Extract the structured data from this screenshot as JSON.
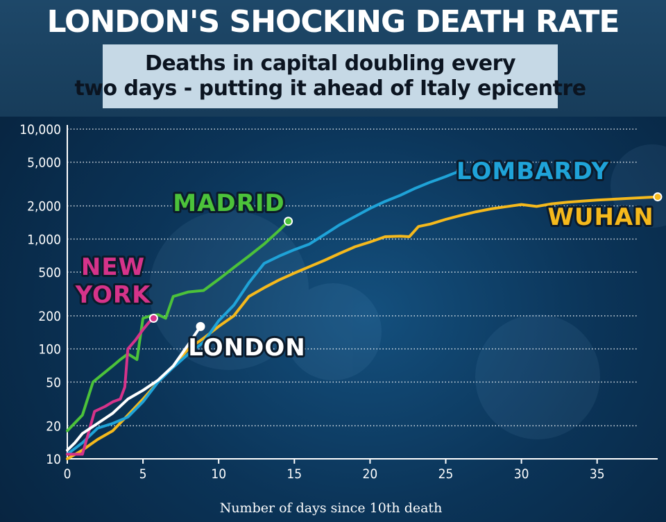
{
  "header": {
    "title": "LONDON'S SHOCKING DEATH RATE",
    "subtitle_line1": "Deaths in capital doubling every",
    "subtitle_line2": "two days - putting it ahead of Italy epicentre"
  },
  "colors": {
    "background": "#0b3458",
    "grid": "#ffffff",
    "madrid": "#4cc23a",
    "new_york": "#d6338a",
    "london": "#ffffff",
    "lombardy": "#1fa3d8",
    "wuhan": "#f5b91c",
    "label_outline": "#0b1a2a"
  },
  "chart_data": {
    "type": "line",
    "xlabel": "Number of days since 10th death",
    "ylabel": "",
    "xlim": [
      0,
      39
    ],
    "ylim": [
      10,
      10000
    ],
    "yscale": "log",
    "x_ticks": [
      0,
      5,
      10,
      15,
      20,
      25,
      30,
      35
    ],
    "y_ticks": [
      {
        "value": 10,
        "label": "10"
      },
      {
        "value": 20,
        "label": "20"
      },
      {
        "value": 50,
        "label": "50"
      },
      {
        "value": 100,
        "label": "100"
      },
      {
        "value": 200,
        "label": "200"
      },
      {
        "value": 500,
        "label": "500"
      },
      {
        "value": 1000,
        "label": "1,000"
      },
      {
        "value": 2000,
        "label": "2,000"
      },
      {
        "value": 5000,
        "label": "5,000"
      },
      {
        "value": 10000,
        "label": "10,000"
      }
    ],
    "grid": "horizontal-dotted",
    "series": [
      {
        "name": "WUHAN",
        "key": "wuhan",
        "label_lines": [
          "WUHAN"
        ],
        "x": [
          0,
          1,
          2,
          3,
          4,
          5,
          6,
          7,
          8,
          9,
          10,
          11,
          12,
          13,
          14,
          15,
          16,
          17,
          18,
          19,
          20,
          21,
          22,
          22.6,
          23.2,
          24,
          25,
          26,
          27,
          28,
          29,
          30,
          31,
          32,
          33,
          34,
          35,
          36,
          37,
          38,
          39
        ],
        "y": [
          10,
          12,
          15,
          18,
          25,
          35,
          50,
          70,
          100,
          125,
          160,
          200,
          300,
          360,
          425,
          490,
          560,
          640,
          740,
          850,
          940,
          1050,
          1060,
          1050,
          1300,
          1370,
          1510,
          1640,
          1770,
          1880,
          1970,
          2060,
          1980,
          2090,
          2160,
          2210,
          2260,
          2300,
          2340,
          2380,
          2420
        ]
      },
      {
        "name": "LOMBARDY",
        "key": "lombardy",
        "label_lines": [
          "LOMBARDY"
        ],
        "x": [
          0,
          1,
          2,
          3,
          4,
          5,
          6,
          7,
          8,
          9,
          10,
          11,
          12,
          13,
          14,
          15,
          16,
          17,
          18,
          19,
          20,
          21,
          22,
          23,
          24,
          25,
          26
        ],
        "y": [
          11,
          14,
          19,
          21,
          24,
          33,
          50,
          68,
          90,
          115,
          180,
          250,
          400,
          600,
          700,
          800,
          900,
          1100,
          1350,
          1600,
          1900,
          2200,
          2500,
          2900,
          3300,
          3700,
          4200
        ]
      },
      {
        "name": "MADRID",
        "key": "madrid",
        "label_lines": [
          "MADRID"
        ],
        "x": [
          0,
          1,
          1.7,
          2.4,
          3,
          3.5,
          4,
          4.3,
          4.6,
          5,
          5.5,
          6,
          6.5,
          7,
          8,
          8.5,
          9,
          10,
          11,
          12,
          13,
          14,
          14.6
        ],
        "y": [
          18,
          25,
          50,
          60,
          70,
          80,
          90,
          85,
          80,
          190,
          200,
          205,
          190,
          300,
          330,
          335,
          340,
          430,
          550,
          700,
          900,
          1200,
          1450
        ]
      },
      {
        "name": "NEW YORK",
        "key": "new_york",
        "label_lines": [
          "NEW",
          "YORK"
        ],
        "x": [
          0,
          0.5,
          1,
          1.8,
          2.5,
          3,
          3.5,
          3.8,
          4,
          4.5,
          5,
          5.4,
          5.7
        ],
        "y": [
          11,
          11,
          11,
          27,
          30,
          33,
          35,
          45,
          100,
          120,
          150,
          175,
          190
        ]
      },
      {
        "name": "LONDON",
        "key": "london",
        "label_lines": [
          "LONDON"
        ],
        "x": [
          0,
          0.5,
          1,
          2,
          3,
          4,
          5,
          6,
          7,
          8,
          8.8
        ],
        "y": [
          12,
          14,
          17,
          21,
          26,
          35,
          42,
          52,
          70,
          110,
          160
        ]
      }
    ]
  }
}
